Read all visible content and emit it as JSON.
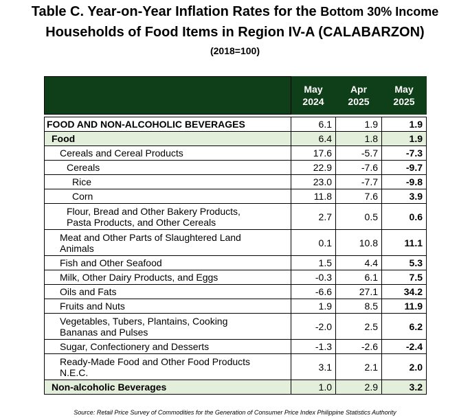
{
  "title": {
    "line1_main": "Table C. Year-on-Year Inflation Rates for the ",
    "line1_small": "Bottom 30% Income",
    "line2": "Households of Food Items in Region IV-A (CALABARZON)",
    "line3": "(2018=100)"
  },
  "table": {
    "columns": [
      {
        "line1": "May",
        "line2": "2024"
      },
      {
        "line1": "Apr",
        "line2": "2025"
      },
      {
        "line1": "May",
        "line2": "2025"
      }
    ],
    "rows": [
      {
        "label": "FOOD AND NON-ALCOHOLIC BEVERAGES",
        "v1": "6.1",
        "v2": "1.9",
        "v3": "1.9"
      },
      {
        "label": "Food",
        "v1": "6.4",
        "v2": "1.8",
        "v3": "1.9"
      },
      {
        "label": "Cereals and Cereal Products",
        "v1": "17.6",
        "v2": "-5.7",
        "v3": "-7.3"
      },
      {
        "label": "Cereals",
        "v1": "22.9",
        "v2": "-7.6",
        "v3": "-9.7"
      },
      {
        "label": "Rice",
        "v1": "23.0",
        "v2": "-7.7",
        "v3": "-9.8"
      },
      {
        "label": "Corn",
        "v1": "11.8",
        "v2": "7.6",
        "v3": "3.9"
      },
      {
        "label_l1": "Flour, Bread and Other Bakery Products,",
        "label_l2": "Pasta Products, and Other Cereals",
        "v1": "2.7",
        "v2": "0.5",
        "v3": "0.6"
      },
      {
        "label_l1": "Meat and Other Parts of Slaughtered Land",
        "label_l2": "Animals",
        "v1": "0.1",
        "v2": "10.8",
        "v3": "11.1"
      },
      {
        "label": "Fish and Other Seafood",
        "v1": "1.5",
        "v2": "4.4",
        "v3": "5.3"
      },
      {
        "label": "Milk, Other Dairy Products, and Eggs",
        "v1": "-0.3",
        "v2": "6.1",
        "v3": "7.5"
      },
      {
        "label": "Oils and Fats",
        "v1": "-6.6",
        "v2": "27.1",
        "v3": "34.2"
      },
      {
        "label": "Fruits and Nuts",
        "v1": "1.9",
        "v2": "8.5",
        "v3": "11.9"
      },
      {
        "label_l1": "Vegetables, Tubers, Plantains, Cooking",
        "label_l2": "Bananas and Pulses",
        "v1": "-2.0",
        "v2": "2.5",
        "v3": "6.2"
      },
      {
        "label": "Sugar, Confectionery and Desserts",
        "v1": "-1.3",
        "v2": "-2.6",
        "v3": "-2.4"
      },
      {
        "label_l1": "Ready-Made Food and Other Food Products",
        "label_l2": "N.E.C.",
        "v1": "3.1",
        "v2": "2.1",
        "v3": "2.0"
      },
      {
        "label": "Non-alcoholic Beverages",
        "v1": "1.0",
        "v2": "2.9",
        "v3": "3.2"
      }
    ]
  },
  "source": "Source: Retail Price Survey of Commodities for the Generation of Consumer Price Index Philippine Statistics Authority",
  "colors": {
    "header_bg": "#0f3f18",
    "highlight_bg": "#e4efdb"
  }
}
